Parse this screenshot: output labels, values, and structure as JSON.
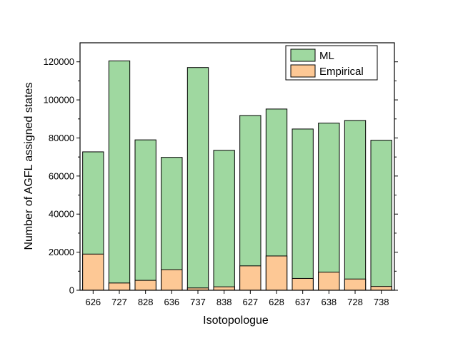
{
  "chart_data": {
    "type": "bar",
    "stacked": true,
    "xlabel": "Isotopologue",
    "ylabel": "Number of AGFL assigned states",
    "ylim": [
      0,
      130000
    ],
    "yticks": [
      0,
      20000,
      40000,
      60000,
      80000,
      100000,
      120000
    ],
    "ytick_labels": [
      "0",
      "20000",
      "40000",
      "60000",
      "80000",
      "100000",
      "120000"
    ],
    "grid": false,
    "legend_position": "top-right",
    "categories": [
      "626",
      "727",
      "828",
      "636",
      "737",
      "838",
      "627",
      "628",
      "637",
      "638",
      "728",
      "738"
    ],
    "series": [
      {
        "name": "ML",
        "color": "#9fd8a0",
        "values": [
          72700,
          120500,
          79000,
          69800,
          117000,
          73500,
          91800,
          95200,
          84700,
          87800,
          89200,
          78800
        ]
      },
      {
        "name": "Empirical",
        "color": "#fdc895",
        "values": [
          19000,
          3800,
          5200,
          10800,
          1200,
          1800,
          12800,
          18000,
          6200,
          9500,
          5900,
          2000
        ]
      }
    ]
  }
}
